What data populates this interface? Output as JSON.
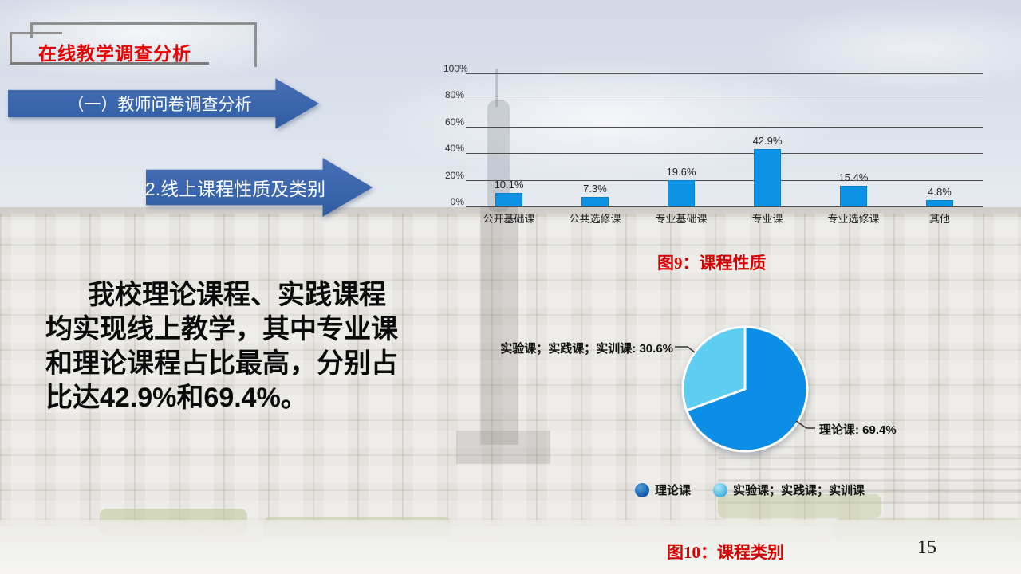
{
  "slide": {
    "title": "在线教学调查分析",
    "page_number": "15"
  },
  "banners": {
    "primary": "（一）教师问卷调查分析",
    "secondary": "2.线上课程性质及类别"
  },
  "paragraph": {
    "lines": [
      "我校理论课程、实践课程",
      "均实现线上教学，其中专业课",
      "和理论课程占比最高，分别占",
      "比达42.9%和69.4%。"
    ]
  },
  "figures": {
    "fig9_caption": "图9：课程性质",
    "fig10_caption": "图10：课程类别"
  },
  "chart_data": [
    {
      "type": "bar",
      "title": "",
      "categories": [
        "公开基础课",
        "公共选修课",
        "专业基础课",
        "专业课",
        "专业选修课",
        "其他"
      ],
      "values": [
        10.1,
        7.3,
        19.6,
        42.9,
        15.4,
        4.8
      ],
      "value_labels": [
        "10.1%",
        "7.3%",
        "19.6%",
        "42.9%",
        "15.4%",
        "4.8%"
      ],
      "xlabel": "",
      "ylabel": "",
      "ylim": [
        0,
        100
      ],
      "yticks": [
        "0%",
        "20%",
        "40%",
        "60%",
        "80%",
        "100%"
      ],
      "grid": true,
      "bar_color": "#0c93e6"
    },
    {
      "type": "pie",
      "slices": [
        {
          "label": "理论课",
          "value": 69.4,
          "display": "理论课: 69.4%",
          "color": "#0d8ee6"
        },
        {
          "label": "实验课；实践课；实训课",
          "value": 30.6,
          "display": "实验课；实践课；实训课: 30.6%",
          "color": "#5ecdf2"
        }
      ],
      "legend": [
        "理论课",
        "实验课；实践课；实训课"
      ],
      "legend_position": "bottom"
    }
  ]
}
